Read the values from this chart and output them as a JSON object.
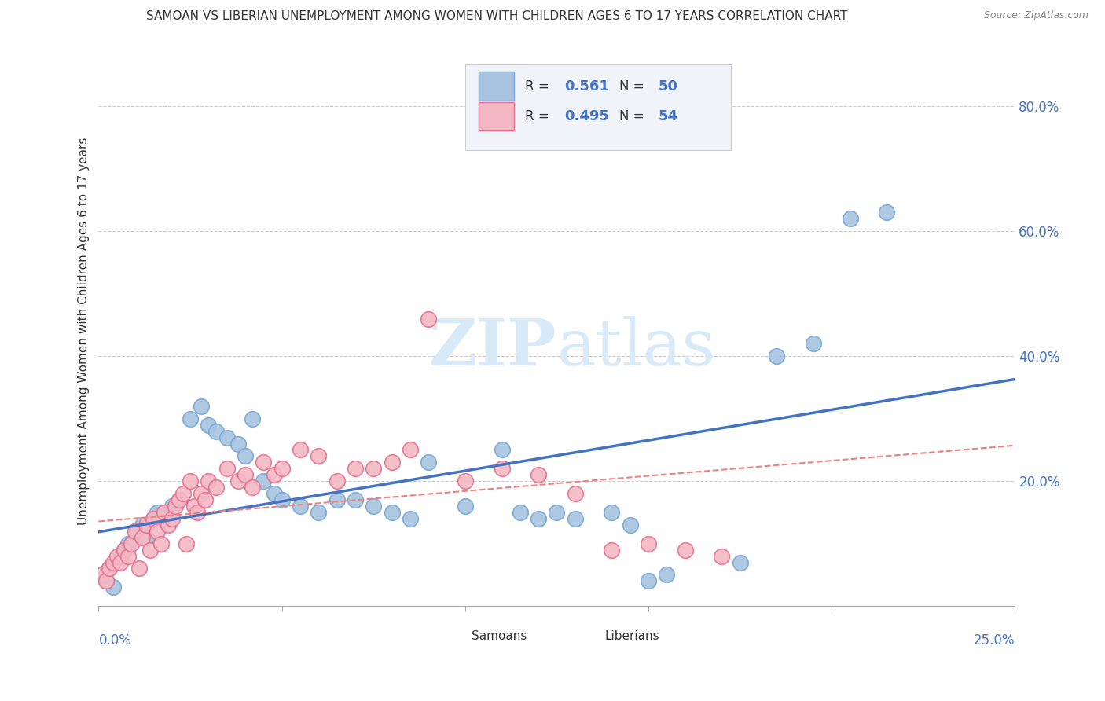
{
  "title": "SAMOAN VS LIBERIAN UNEMPLOYMENT AMONG WOMEN WITH CHILDREN AGES 6 TO 17 YEARS CORRELATION CHART",
  "source": "Source: ZipAtlas.com",
  "ylabel": "Unemployment Among Women with Children Ages 6 to 17 years",
  "xlim": [
    0,
    0.25
  ],
  "ylim": [
    0,
    0.88
  ],
  "samoans_R": "0.561",
  "samoans_N": "50",
  "liberians_R": "0.495",
  "liberians_N": "54",
  "samoan_color": "#a8c4e0",
  "liberian_color": "#f4b8c4",
  "samoan_edge_color": "#7aa8d4",
  "liberian_edge_color": "#e87090",
  "samoan_line_color": "#4472c4",
  "liberian_line_color": "#f08080",
  "watermark_color": "#d8eaf8",
  "grid_color": "#cccccc",
  "axis_color": "#4472c4",
  "samoan_x": [
    0.001,
    0.002,
    0.003,
    0.004,
    0.005,
    0.006,
    0.007,
    0.008,
    0.01,
    0.012,
    0.013,
    0.015,
    0.016,
    0.018,
    0.02,
    0.022,
    0.025,
    0.028,
    0.03,
    0.032,
    0.035,
    0.038,
    0.04,
    0.042,
    0.045,
    0.048,
    0.05,
    0.055,
    0.06,
    0.065,
    0.07,
    0.075,
    0.08,
    0.085,
    0.09,
    0.1,
    0.11,
    0.115,
    0.12,
    0.125,
    0.13,
    0.14,
    0.145,
    0.15,
    0.155,
    0.175,
    0.185,
    0.195,
    0.205,
    0.215
  ],
  "samoan_y": [
    0.05,
    0.04,
    0.06,
    0.03,
    0.07,
    0.08,
    0.09,
    0.1,
    0.12,
    0.13,
    0.11,
    0.14,
    0.15,
    0.14,
    0.16,
    0.17,
    0.3,
    0.32,
    0.29,
    0.28,
    0.27,
    0.26,
    0.24,
    0.3,
    0.2,
    0.18,
    0.17,
    0.16,
    0.15,
    0.17,
    0.17,
    0.16,
    0.15,
    0.14,
    0.23,
    0.16,
    0.25,
    0.15,
    0.14,
    0.15,
    0.14,
    0.15,
    0.13,
    0.04,
    0.05,
    0.07,
    0.4,
    0.42,
    0.62,
    0.63
  ],
  "liberian_x": [
    0.001,
    0.002,
    0.003,
    0.004,
    0.005,
    0.006,
    0.007,
    0.008,
    0.009,
    0.01,
    0.011,
    0.012,
    0.013,
    0.014,
    0.015,
    0.016,
    0.017,
    0.018,
    0.019,
    0.02,
    0.021,
    0.022,
    0.023,
    0.024,
    0.025,
    0.026,
    0.027,
    0.028,
    0.029,
    0.03,
    0.032,
    0.035,
    0.038,
    0.04,
    0.042,
    0.045,
    0.048,
    0.05,
    0.055,
    0.06,
    0.065,
    0.07,
    0.075,
    0.08,
    0.085,
    0.09,
    0.1,
    0.11,
    0.12,
    0.13,
    0.14,
    0.15,
    0.16,
    0.17
  ],
  "liberian_y": [
    0.05,
    0.04,
    0.06,
    0.07,
    0.08,
    0.07,
    0.09,
    0.08,
    0.1,
    0.12,
    0.06,
    0.11,
    0.13,
    0.09,
    0.14,
    0.12,
    0.1,
    0.15,
    0.13,
    0.14,
    0.16,
    0.17,
    0.18,
    0.1,
    0.2,
    0.16,
    0.15,
    0.18,
    0.17,
    0.2,
    0.19,
    0.22,
    0.2,
    0.21,
    0.19,
    0.23,
    0.21,
    0.22,
    0.25,
    0.24,
    0.2,
    0.22,
    0.22,
    0.23,
    0.25,
    0.46,
    0.2,
    0.22,
    0.21,
    0.18,
    0.09,
    0.1,
    0.09,
    0.08
  ]
}
